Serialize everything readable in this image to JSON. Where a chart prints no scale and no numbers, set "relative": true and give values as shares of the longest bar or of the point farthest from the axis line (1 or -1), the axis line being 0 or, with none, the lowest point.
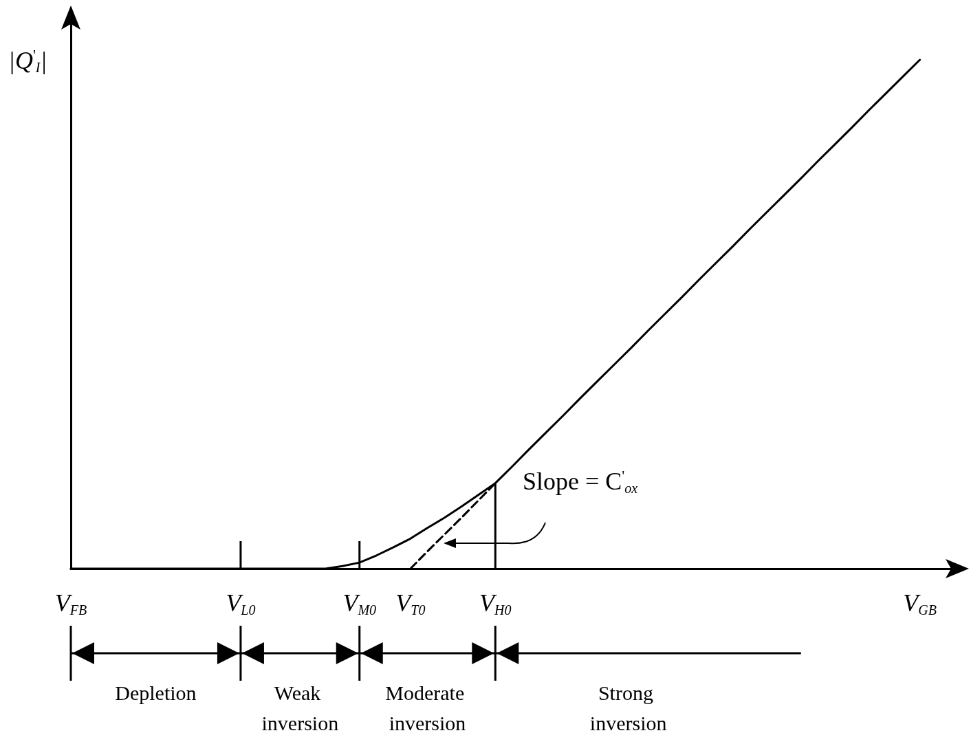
{
  "chart_data": {
    "type": "line",
    "relative": true,
    "ylabel": "|Q$^{'}$$_{I}$|",
    "categories": [
      "V$_{FB}$",
      null,
      null,
      null,
      null,
      null,
      null,
      null,
      null,
      null,
      "V$_{L0}$",
      null,
      null,
      null,
      null,
      null,
      null,
      "V$_{M0}$",
      null,
      null,
      "V$_{T0}$",
      null,
      null,
      null,
      null,
      "V$_{H0}$",
      null,
      null,
      null,
      null,
      null,
      null,
      null,
      null,
      null,
      null,
      null,
      null,
      null,
      null,
      null,
      null,
      null,
      null,
      null,
      null,
      null,
      null,
      null,
      null,
      "V$_{GB}$",
      null,
      null
    ],
    "series": [
      {
        "color": "#000000",
        "values": [
          0,
          0,
          0,
          0,
          0,
          0,
          0,
          0,
          0,
          0,
          0,
          0,
          0,
          0,
          0,
          0,
          0.005,
          0.012,
          0.026,
          0.042,
          0.059,
          0.08,
          0.1,
          0.122,
          0.145,
          0.168,
          0.201,
          0.235,
          0.268,
          0.301,
          0.335,
          0.368,
          0.401,
          0.434,
          0.468,
          0.501,
          0.534,
          0.568,
          0.601,
          0.634,
          0.668,
          0.701,
          0.734,
          0.767,
          0.801,
          0.834,
          0.867,
          0.901,
          0.934,
          0.967,
          1,
          null,
          null
        ]
      },
      {
        "color": "#000000",
        "line_style": "dashed",
        "values": [
          null,
          null,
          null,
          null,
          null,
          null,
          null,
          null,
          null,
          null,
          null,
          null,
          null,
          null,
          null,
          null,
          null,
          null,
          null,
          null,
          0,
          0.034,
          0.067,
          0.1,
          0.134,
          0.168,
          null,
          null,
          null,
          null,
          null,
          null,
          null,
          null,
          null,
          null,
          null,
          null,
          null,
          null,
          null,
          null,
          null,
          null,
          null,
          null,
          null,
          null,
          null,
          null,
          null,
          null,
          null
        ]
      }
    ],
    "marker": "none",
    "grid": false,
    "annotations": [
      "Slope = C$^{'}$$_{ox}$",
      "Depletion",
      "Weak inversion",
      "Moderate inversion",
      "Strong inversion"
    ]
  }
}
